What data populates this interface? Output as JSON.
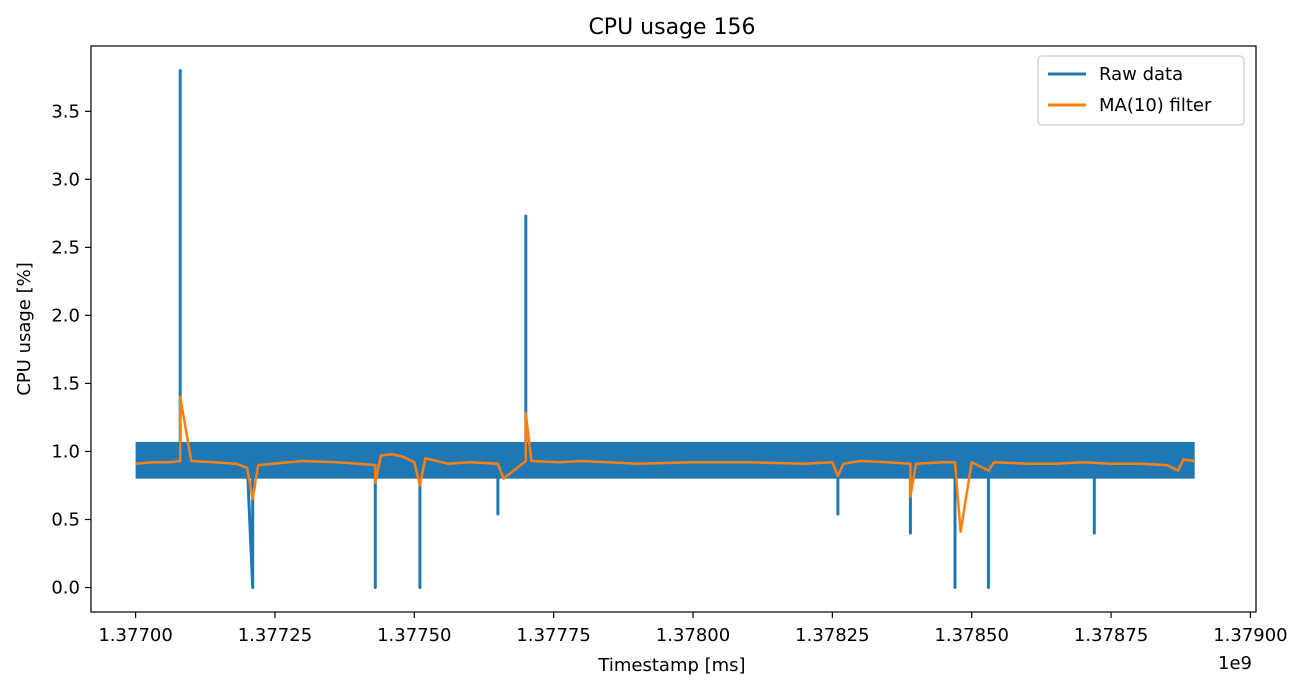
{
  "chart_data": {
    "type": "line",
    "title": "CPU usage 156",
    "xlabel": "Timestamp [ms]",
    "ylabel": "CPU usage [%]",
    "x_offset_label": "1e9",
    "xlim": [
      1.37692,
      1.37901
    ],
    "ylim": [
      -0.18,
      3.98
    ],
    "x_ticks": [
      1.377,
      1.37725,
      1.3775,
      1.37775,
      1.378,
      1.37825,
      1.3785,
      1.37875,
      1.379
    ],
    "x_tick_labels": [
      "1.37700",
      "1.37725",
      "1.37750",
      "1.37775",
      "1.37800",
      "1.37825",
      "1.37850",
      "1.37875",
      "1.37900"
    ],
    "y_ticks": [
      0.0,
      0.5,
      1.0,
      1.5,
      2.0,
      2.5,
      3.0,
      3.5
    ],
    "y_tick_labels": [
      "0.0",
      "0.5",
      "1.0",
      "1.5",
      "2.0",
      "2.5",
      "3.0",
      "3.5"
    ],
    "grid": false,
    "legend_position": "top-right",
    "band": {
      "x": [
        1.377,
        1.3789
      ],
      "y": [
        0.8,
        1.07
      ]
    },
    "series": [
      {
        "name": "Raw data",
        "color": "#1f77b4",
        "x": [
          1.377,
          1.37708,
          1.37708,
          1.37708,
          1.3772,
          1.37721,
          1.37721,
          1.37743,
          1.37743,
          1.37743,
          1.37751,
          1.37751,
          1.37751,
          1.37765,
          1.37765,
          1.37765,
          1.3777,
          1.3777,
          1.3777,
          1.37826,
          1.37826,
          1.37826,
          1.37839,
          1.37839,
          1.37839,
          1.37847,
          1.37847,
          1.37847,
          1.37853,
          1.37853,
          1.37853,
          1.37872,
          1.37872,
          1.37872,
          1.3789
        ],
        "y": [
          0.93,
          0.93,
          3.8,
          0.93,
          0.93,
          0.0,
          0.93,
          0.93,
          0.0,
          0.93,
          0.93,
          0.0,
          0.93,
          0.93,
          0.54,
          0.93,
          0.93,
          2.73,
          0.93,
          0.93,
          0.54,
          0.93,
          0.93,
          0.4,
          0.93,
          0.93,
          0.0,
          0.93,
          0.93,
          0.0,
          0.93,
          0.93,
          0.4,
          0.93,
          0.93
        ]
      },
      {
        "name": "MA(10) filter",
        "color": "#ff7f0e",
        "x": [
          1.377,
          1.37703,
          1.37706,
          1.37708,
          1.37708,
          1.3771,
          1.37714,
          1.37718,
          1.3772,
          1.37721,
          1.37722,
          1.3773,
          1.37736,
          1.3774,
          1.37743,
          1.37743,
          1.37744,
          1.37746,
          1.37748,
          1.3775,
          1.37751,
          1.37752,
          1.37756,
          1.3776,
          1.37765,
          1.37766,
          1.3777,
          1.3777,
          1.37771,
          1.37776,
          1.3778,
          1.3779,
          1.378,
          1.3781,
          1.3782,
          1.37825,
          1.37826,
          1.37827,
          1.3783,
          1.37835,
          1.37839,
          1.37839,
          1.3784,
          1.37845,
          1.37847,
          1.37848,
          1.3785,
          1.37853,
          1.37854,
          1.3786,
          1.37865,
          1.3787,
          1.37875,
          1.3788,
          1.37885,
          1.37887,
          1.37888,
          1.3789
        ],
        "y": [
          0.91,
          0.92,
          0.92,
          0.93,
          1.4,
          0.93,
          0.92,
          0.91,
          0.88,
          0.65,
          0.9,
          0.93,
          0.92,
          0.91,
          0.9,
          0.77,
          0.97,
          0.98,
          0.96,
          0.92,
          0.75,
          0.95,
          0.91,
          0.92,
          0.91,
          0.8,
          0.93,
          1.28,
          0.93,
          0.92,
          0.93,
          0.91,
          0.92,
          0.92,
          0.91,
          0.92,
          0.82,
          0.91,
          0.93,
          0.92,
          0.91,
          0.67,
          0.91,
          0.92,
          0.92,
          0.41,
          0.92,
          0.86,
          0.92,
          0.91,
          0.91,
          0.92,
          0.91,
          0.91,
          0.9,
          0.86,
          0.94,
          0.93
        ]
      }
    ]
  }
}
